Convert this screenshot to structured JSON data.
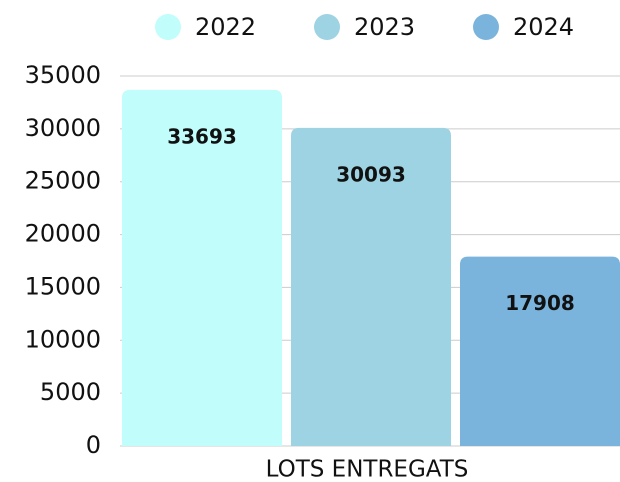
{
  "chart_data": {
    "type": "bar",
    "categories": [
      "LOTS ENTREGATS"
    ],
    "series": [
      {
        "name": "2022",
        "color": "#c0fdfb",
        "values": [
          33693
        ]
      },
      {
        "name": "2023",
        "color": "#9dd3e2",
        "values": [
          30093
        ]
      },
      {
        "name": "2024",
        "color": "#7ab4dc",
        "values": [
          17908
        ]
      }
    ],
    "ylim": [
      0,
      35000
    ],
    "yticks": [
      0,
      5000,
      10000,
      15000,
      20000,
      25000,
      30000,
      35000
    ],
    "grid": true,
    "legend": "top"
  }
}
